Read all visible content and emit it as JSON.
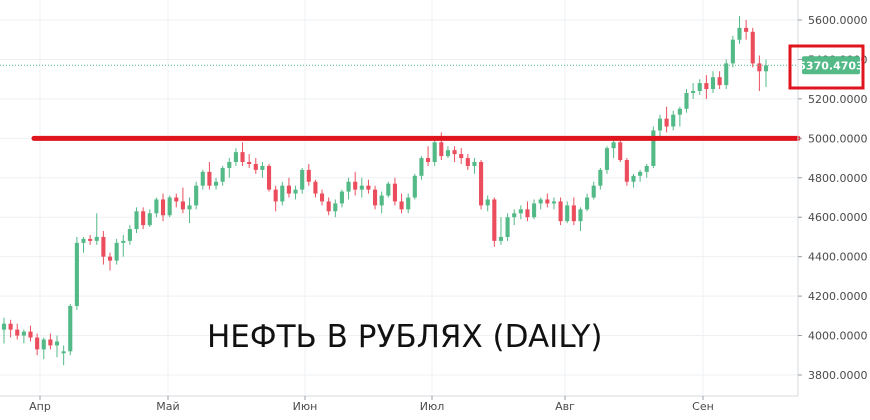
{
  "chart_data": {
    "type": "candlestick",
    "annotation": "НЕФТЬ В РУБЛЯХ (DAILY)",
    "x_labels": [
      "Апр",
      "Май",
      "Июн",
      "Июл",
      "Авг",
      "Сен"
    ],
    "y_ticks": [
      "5600.0000",
      "5400.0000",
      "5200.0000",
      "5000.0000",
      "4800.0000",
      "4600.0000",
      "4400.0000",
      "4200.0000",
      "4000.0000",
      "3800.0000"
    ],
    "ylim": [
      3760,
      5660
    ],
    "grid": true,
    "current_price": 5370.4703,
    "current_price_label": "5370.4703",
    "support_level": 5000,
    "colors": {
      "up": "#53b987",
      "down": "#eb4d5c",
      "support_line": "#e0141c",
      "highlight_box": "#e0141c",
      "grid": "#eef0f3",
      "price_tag": "#53b987"
    },
    "candles": [
      {
        "o": 4030,
        "h": 4090,
        "l": 3960,
        "c": 4060
      },
      {
        "o": 4060,
        "h": 4080,
        "l": 3990,
        "c": 4030
      },
      {
        "o": 4030,
        "h": 4060,
        "l": 3980,
        "c": 4000
      },
      {
        "o": 4000,
        "h": 4030,
        "l": 3960,
        "c": 4020
      },
      {
        "o": 4020,
        "h": 4050,
        "l": 3970,
        "c": 3990
      },
      {
        "o": 3990,
        "h": 4010,
        "l": 3900,
        "c": 3930
      },
      {
        "o": 3930,
        "h": 3990,
        "l": 3880,
        "c": 3980
      },
      {
        "o": 3980,
        "h": 4010,
        "l": 3930,
        "c": 3950
      },
      {
        "o": 3950,
        "h": 4000,
        "l": 3890,
        "c": 3970
      },
      {
        "o": 3910,
        "h": 3950,
        "l": 3850,
        "c": 3920
      },
      {
        "o": 3920,
        "h": 4160,
        "l": 3900,
        "c": 4150
      },
      {
        "o": 4150,
        "h": 4500,
        "l": 4130,
        "c": 4470
      },
      {
        "o": 4470,
        "h": 4500,
        "l": 4420,
        "c": 4490
      },
      {
        "o": 4490,
        "h": 4510,
        "l": 4460,
        "c": 4480
      },
      {
        "o": 4480,
        "h": 4620,
        "l": 4460,
        "c": 4500
      },
      {
        "o": 4500,
        "h": 4530,
        "l": 4360,
        "c": 4400
      },
      {
        "o": 4400,
        "h": 4420,
        "l": 4330,
        "c": 4380
      },
      {
        "o": 4380,
        "h": 4490,
        "l": 4360,
        "c": 4470
      },
      {
        "o": 4470,
        "h": 4510,
        "l": 4400,
        "c": 4480
      },
      {
        "o": 4480,
        "h": 4560,
        "l": 4460,
        "c": 4540
      },
      {
        "o": 4540,
        "h": 4650,
        "l": 4520,
        "c": 4630
      },
      {
        "o": 4630,
        "h": 4650,
        "l": 4540,
        "c": 4560
      },
      {
        "o": 4560,
        "h": 4640,
        "l": 4550,
        "c": 4620
      },
      {
        "o": 4620,
        "h": 4700,
        "l": 4600,
        "c": 4690
      },
      {
        "o": 4690,
        "h": 4720,
        "l": 4580,
        "c": 4610
      },
      {
        "o": 4610,
        "h": 4710,
        "l": 4600,
        "c": 4700
      },
      {
        "o": 4700,
        "h": 4720,
        "l": 4650,
        "c": 4680
      },
      {
        "o": 4680,
        "h": 4750,
        "l": 4620,
        "c": 4640
      },
      {
        "o": 4640,
        "h": 4700,
        "l": 4570,
        "c": 4660
      },
      {
        "o": 4660,
        "h": 4780,
        "l": 4640,
        "c": 4760
      },
      {
        "o": 4760,
        "h": 4840,
        "l": 4740,
        "c": 4830
      },
      {
        "o": 4830,
        "h": 4880,
        "l": 4740,
        "c": 4760
      },
      {
        "o": 4760,
        "h": 4800,
        "l": 4740,
        "c": 4780
      },
      {
        "o": 4780,
        "h": 4860,
        "l": 4760,
        "c": 4850
      },
      {
        "o": 4850,
        "h": 4900,
        "l": 4800,
        "c": 4880
      },
      {
        "o": 4880,
        "h": 4950,
        "l": 4860,
        "c": 4930
      },
      {
        "o": 4930,
        "h": 4980,
        "l": 4860,
        "c": 4880
      },
      {
        "o": 4880,
        "h": 4920,
        "l": 4850,
        "c": 4870
      },
      {
        "o": 4870,
        "h": 4900,
        "l": 4820,
        "c": 4840
      },
      {
        "o": 4840,
        "h": 4880,
        "l": 4800,
        "c": 4860
      },
      {
        "o": 4860,
        "h": 4870,
        "l": 4730,
        "c": 4740
      },
      {
        "o": 4740,
        "h": 4760,
        "l": 4630,
        "c": 4680
      },
      {
        "o": 4680,
        "h": 4780,
        "l": 4660,
        "c": 4760
      },
      {
        "o": 4760,
        "h": 4800,
        "l": 4700,
        "c": 4720
      },
      {
        "o": 4720,
        "h": 4760,
        "l": 4690,
        "c": 4740
      },
      {
        "o": 4740,
        "h": 4850,
        "l": 4720,
        "c": 4840
      },
      {
        "o": 4840,
        "h": 4870,
        "l": 4760,
        "c": 4780
      },
      {
        "o": 4780,
        "h": 4790,
        "l": 4700,
        "c": 4720
      },
      {
        "o": 4720,
        "h": 4740,
        "l": 4660,
        "c": 4680
      },
      {
        "o": 4680,
        "h": 4700,
        "l": 4610,
        "c": 4630
      },
      {
        "o": 4630,
        "h": 4690,
        "l": 4600,
        "c": 4670
      },
      {
        "o": 4670,
        "h": 4740,
        "l": 4650,
        "c": 4730
      },
      {
        "o": 4730,
        "h": 4800,
        "l": 4690,
        "c": 4780
      },
      {
        "o": 4780,
        "h": 4830,
        "l": 4710,
        "c": 4740
      },
      {
        "o": 4740,
        "h": 4800,
        "l": 4700,
        "c": 4760
      },
      {
        "o": 4760,
        "h": 4790,
        "l": 4720,
        "c": 4740
      },
      {
        "o": 4740,
        "h": 4760,
        "l": 4640,
        "c": 4660
      },
      {
        "o": 4660,
        "h": 4730,
        "l": 4620,
        "c": 4710
      },
      {
        "o": 4710,
        "h": 4780,
        "l": 4700,
        "c": 4770
      },
      {
        "o": 4770,
        "h": 4800,
        "l": 4660,
        "c": 4680
      },
      {
        "o": 4680,
        "h": 4720,
        "l": 4620,
        "c": 4640
      },
      {
        "o": 4640,
        "h": 4720,
        "l": 4620,
        "c": 4700
      },
      {
        "o": 4700,
        "h": 4820,
        "l": 4690,
        "c": 4810
      },
      {
        "o": 4810,
        "h": 4910,
        "l": 4790,
        "c": 4900
      },
      {
        "o": 4900,
        "h": 4960,
        "l": 4860,
        "c": 4880
      },
      {
        "o": 4880,
        "h": 5000,
        "l": 4860,
        "c": 4980
      },
      {
        "o": 4980,
        "h": 5030,
        "l": 4890,
        "c": 4910
      },
      {
        "o": 4910,
        "h": 4960,
        "l": 4900,
        "c": 4940
      },
      {
        "o": 4940,
        "h": 4960,
        "l": 4880,
        "c": 4920
      },
      {
        "o": 4920,
        "h": 4950,
        "l": 4870,
        "c": 4900
      },
      {
        "o": 4900,
        "h": 4920,
        "l": 4840,
        "c": 4860
      },
      {
        "o": 4860,
        "h": 4900,
        "l": 4820,
        "c": 4880
      },
      {
        "o": 4880,
        "h": 4890,
        "l": 4640,
        "c": 4660
      },
      {
        "o": 4660,
        "h": 4710,
        "l": 4630,
        "c": 4690
      },
      {
        "o": 4690,
        "h": 4700,
        "l": 4450,
        "c": 4480
      },
      {
        "o": 4480,
        "h": 4600,
        "l": 4460,
        "c": 4500
      },
      {
        "o": 4500,
        "h": 4620,
        "l": 4480,
        "c": 4600
      },
      {
        "o": 4600,
        "h": 4640,
        "l": 4560,
        "c": 4620
      },
      {
        "o": 4620,
        "h": 4660,
        "l": 4590,
        "c": 4640
      },
      {
        "o": 4640,
        "h": 4680,
        "l": 4580,
        "c": 4600
      },
      {
        "o": 4600,
        "h": 4690,
        "l": 4590,
        "c": 4670
      },
      {
        "o": 4670,
        "h": 4700,
        "l": 4640,
        "c": 4690
      },
      {
        "o": 4690,
        "h": 4720,
        "l": 4650,
        "c": 4670
      },
      {
        "o": 4670,
        "h": 4700,
        "l": 4640,
        "c": 4680
      },
      {
        "o": 4680,
        "h": 4700,
        "l": 4560,
        "c": 4580
      },
      {
        "o": 4580,
        "h": 4680,
        "l": 4570,
        "c": 4660
      },
      {
        "o": 4660,
        "h": 4700,
        "l": 4560,
        "c": 4580
      },
      {
        "o": 4580,
        "h": 4650,
        "l": 4530,
        "c": 4640
      },
      {
        "o": 4640,
        "h": 4720,
        "l": 4630,
        "c": 4700
      },
      {
        "o": 4700,
        "h": 4780,
        "l": 4690,
        "c": 4760
      },
      {
        "o": 4760,
        "h": 4850,
        "l": 4740,
        "c": 4840
      },
      {
        "o": 4840,
        "h": 4960,
        "l": 4820,
        "c": 4950
      },
      {
        "o": 4950,
        "h": 5000,
        "l": 4900,
        "c": 4980
      },
      {
        "o": 4980,
        "h": 4990,
        "l": 4880,
        "c": 4890
      },
      {
        "o": 4890,
        "h": 4900,
        "l": 4760,
        "c": 4780
      },
      {
        "o": 4780,
        "h": 4820,
        "l": 4750,
        "c": 4810
      },
      {
        "o": 4810,
        "h": 4840,
        "l": 4780,
        "c": 4830
      },
      {
        "o": 4830,
        "h": 4870,
        "l": 4800,
        "c": 4860
      },
      {
        "o": 4860,
        "h": 5060,
        "l": 4850,
        "c": 5040
      },
      {
        "o": 5040,
        "h": 5120,
        "l": 5000,
        "c": 5100
      },
      {
        "o": 5100,
        "h": 5160,
        "l": 5030,
        "c": 5060
      },
      {
        "o": 5060,
        "h": 5140,
        "l": 5040,
        "c": 5120
      },
      {
        "o": 5120,
        "h": 5160,
        "l": 5060,
        "c": 5150
      },
      {
        "o": 5150,
        "h": 5250,
        "l": 5130,
        "c": 5230
      },
      {
        "o": 5230,
        "h": 5280,
        "l": 5200,
        "c": 5240
      },
      {
        "o": 5240,
        "h": 5300,
        "l": 5220,
        "c": 5280
      },
      {
        "o": 5280,
        "h": 5320,
        "l": 5200,
        "c": 5250
      },
      {
        "o": 5250,
        "h": 5340,
        "l": 5230,
        "c": 5310
      },
      {
        "o": 5310,
        "h": 5340,
        "l": 5250,
        "c": 5270
      },
      {
        "o": 5270,
        "h": 5400,
        "l": 5250,
        "c": 5380
      },
      {
        "o": 5380,
        "h": 5520,
        "l": 5360,
        "c": 5500
      },
      {
        "o": 5500,
        "h": 5620,
        "l": 5480,
        "c": 5560
      },
      {
        "o": 5560,
        "h": 5600,
        "l": 5500,
        "c": 5540
      },
      {
        "o": 5540,
        "h": 5560,
        "l": 5360,
        "c": 5380
      },
      {
        "o": 5380,
        "h": 5420,
        "l": 5240,
        "c": 5340
      },
      {
        "o": 5340,
        "h": 5400,
        "l": 5260,
        "c": 5370
      }
    ]
  }
}
